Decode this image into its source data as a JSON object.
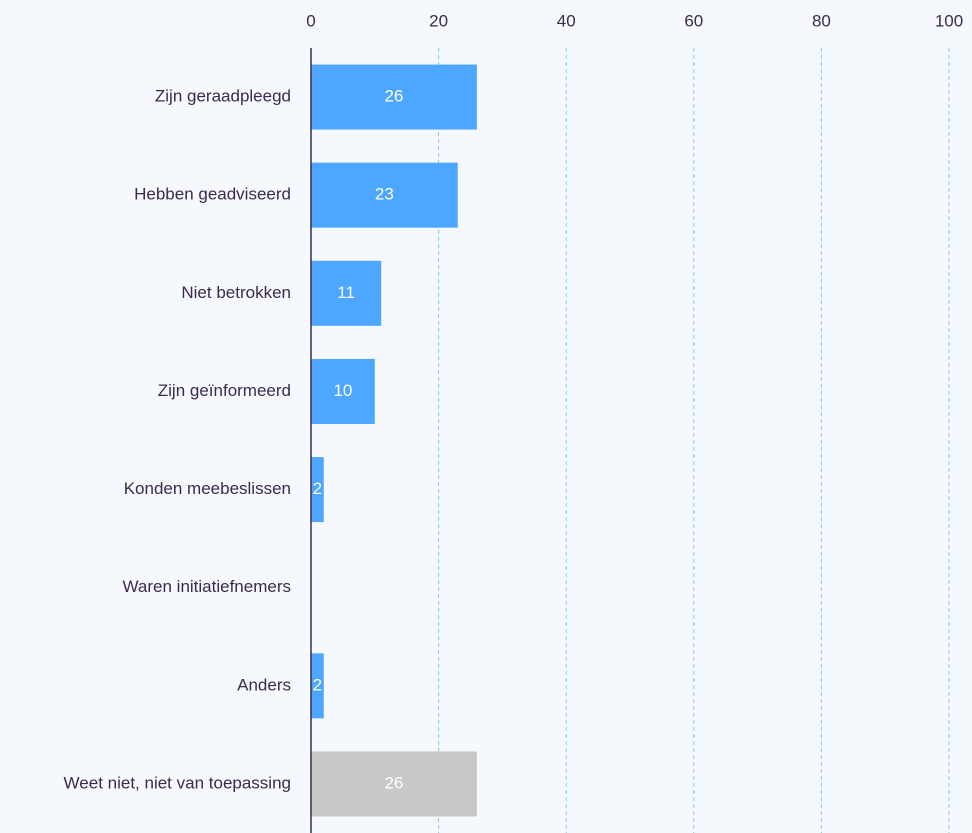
{
  "chart_data": {
    "type": "barh",
    "categories": [
      "Zijn geraadpleegd",
      "Hebben geadviseerd",
      "Niet betrokken",
      "Zijn geïnformeerd",
      "Konden meebeslissen",
      "Waren initiatiefnemers",
      "Anders",
      "Weet niet, niet van toepassing"
    ],
    "values": [
      26,
      23,
      11,
      10,
      2,
      0,
      2,
      26
    ],
    "colors": [
      "#4da6ff",
      "#4da6ff",
      "#4da6ff",
      "#4da6ff",
      "#4da6ff",
      "#4da6ff",
      "#4da6ff",
      "#c8c8c8"
    ],
    "xlim": [
      0,
      100
    ],
    "xticks": [
      0,
      20,
      40,
      60,
      80,
      100
    ],
    "grid": true
  }
}
